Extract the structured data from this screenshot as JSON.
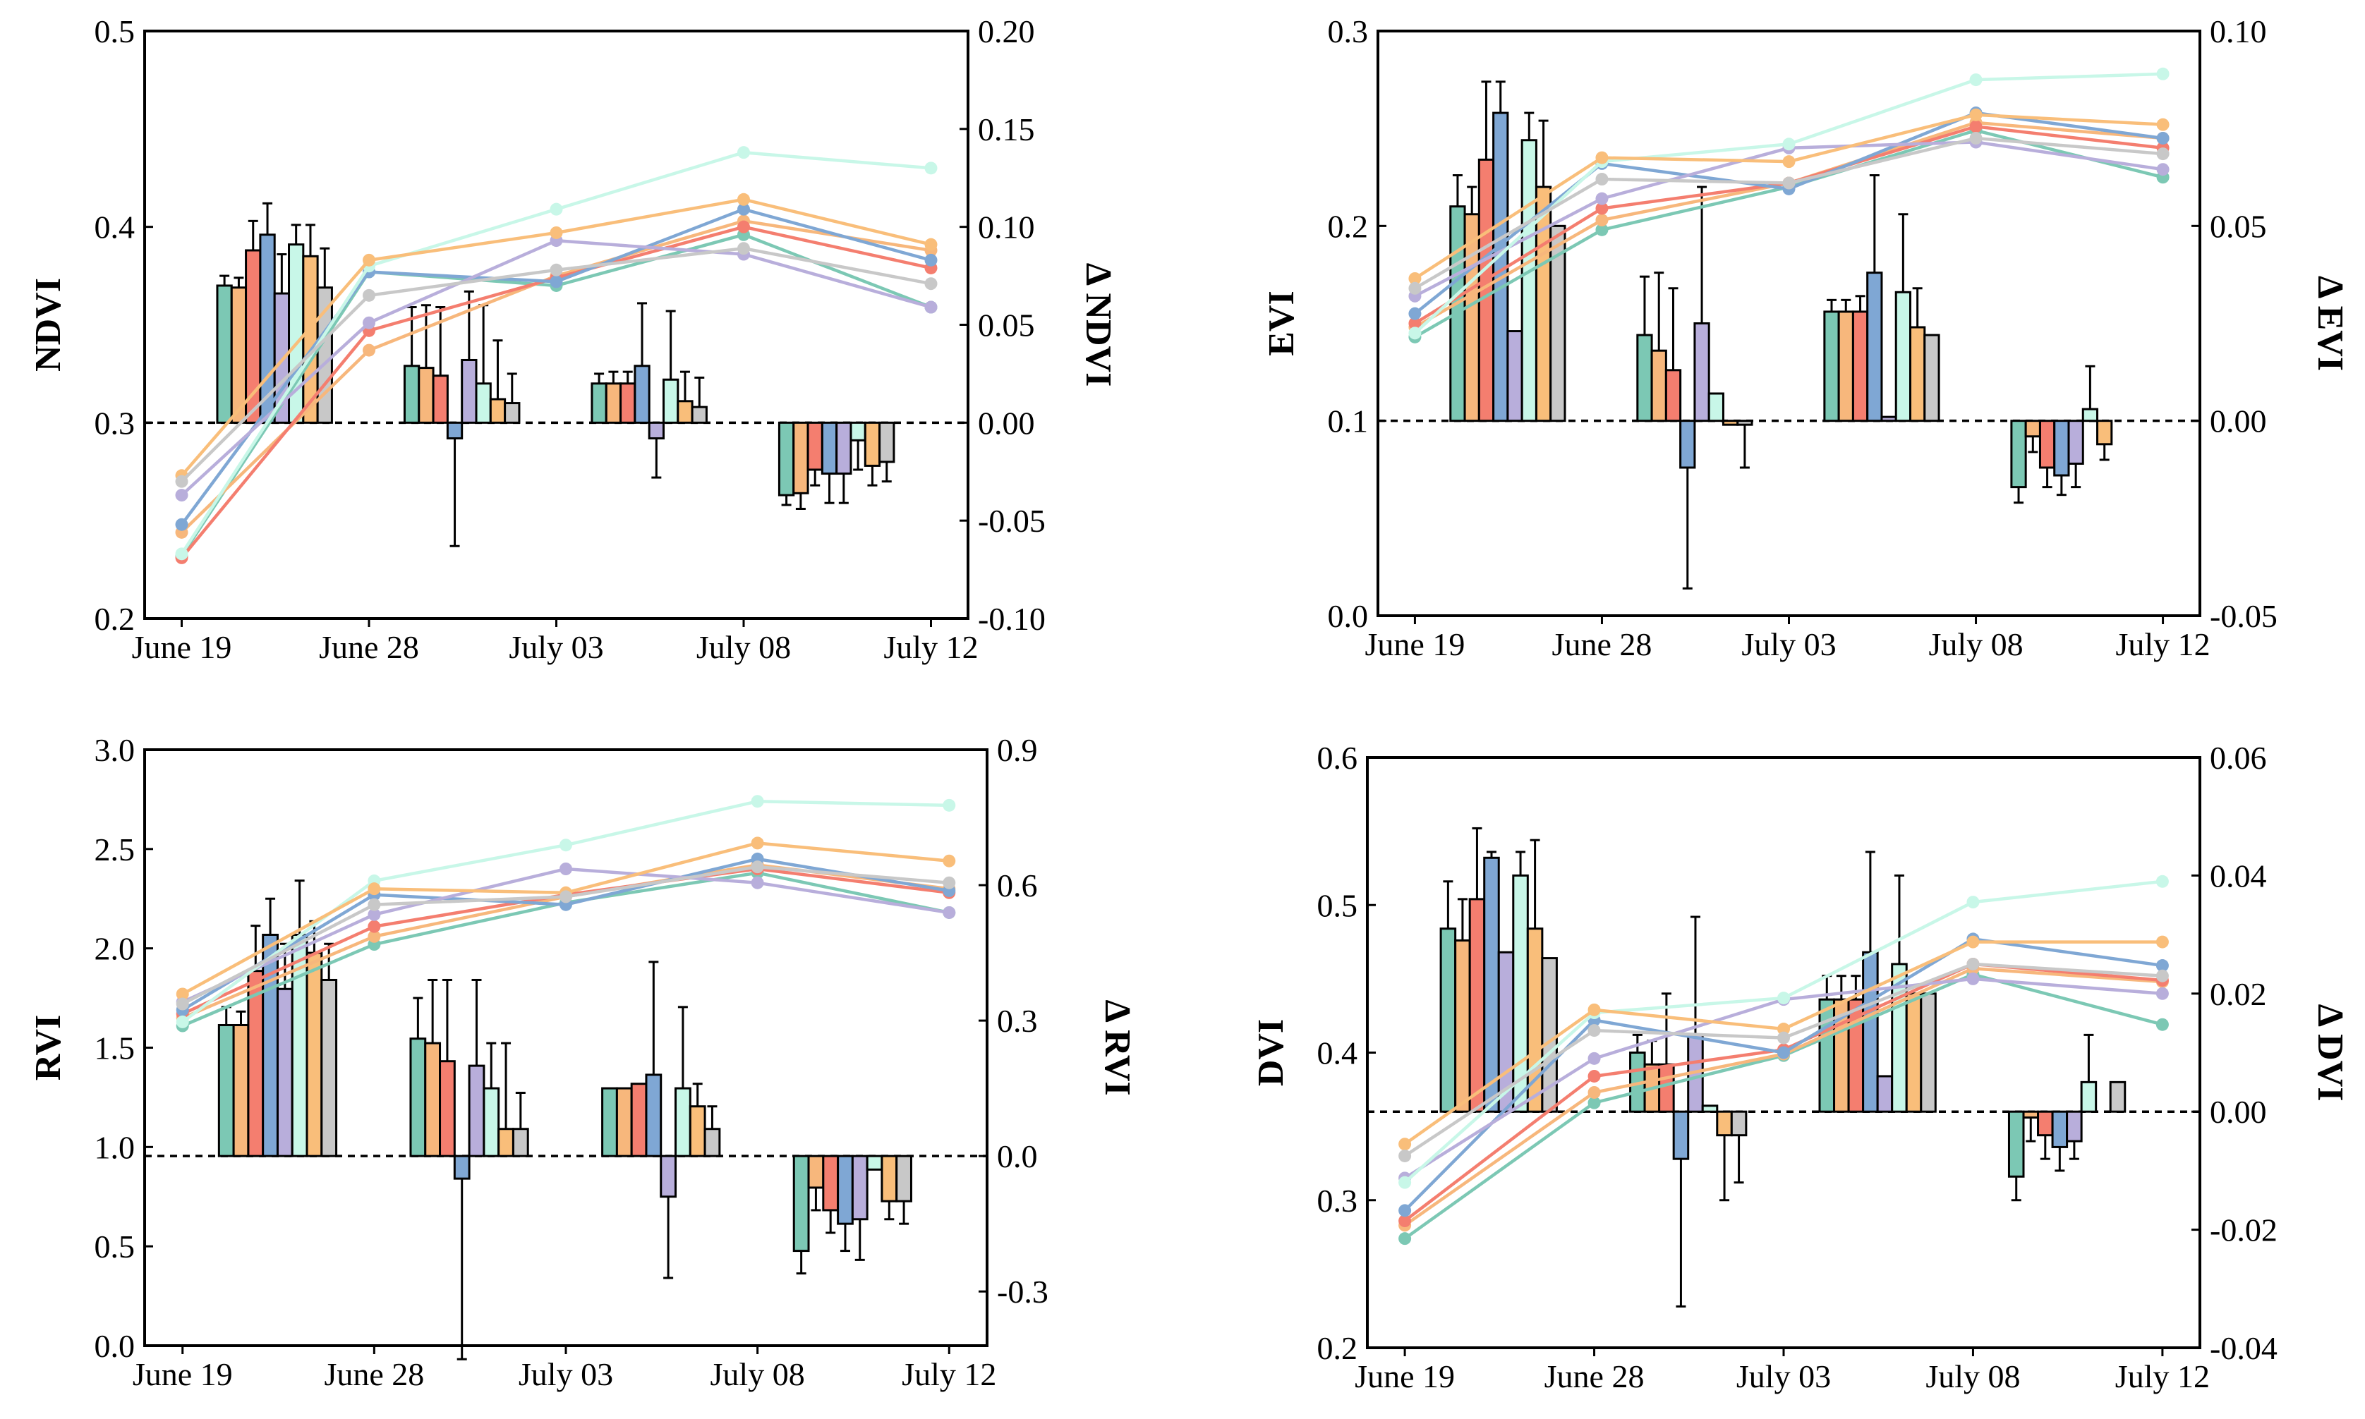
{
  "colors": {
    "series": [
      "#7cc8b4",
      "#f7b77c",
      "#f47e6f",
      "#7fa7d4",
      "#b8aedb",
      "#c8f7e8",
      "#f9be7a",
      "#c8c8c8"
    ],
    "dashed_line": "#000000",
    "errorbar": "#000000"
  },
  "chart_data": [
    {
      "type": "bar+line",
      "panel": "NDVI",
      "ylabel": "NDVI",
      "y2label": "Δ NDVI",
      "categories": [
        "June 19",
        "June 28",
        "July 03",
        "July 08",
        "July 12"
      ],
      "ylim": [
        0.2,
        0.5
      ],
      "yticks": [
        "0.2",
        "0.3",
        "0.4",
        "0.5"
      ],
      "y2lim": [
        -0.1,
        0.2
      ],
      "y2ticks": [
        "-0.10",
        "-0.05",
        "0.00",
        "0.05",
        "0.10",
        "0.15",
        "0.20"
      ],
      "lines": [
        [
          0.232,
          0.377,
          0.37,
          0.396,
          0.359
        ],
        [
          0.244,
          0.337,
          0.375,
          0.403,
          0.388
        ],
        [
          0.231,
          0.347,
          0.374,
          0.4,
          0.379
        ],
        [
          0.248,
          0.377,
          0.372,
          0.409,
          0.383
        ],
        [
          0.263,
          0.351,
          0.393,
          0.386,
          0.359
        ],
        [
          0.233,
          0.38,
          0.409,
          0.438,
          0.43
        ],
        [
          0.273,
          0.383,
          0.397,
          0.414,
          0.391
        ],
        [
          0.27,
          0.365,
          0.378,
          0.389,
          0.371
        ]
      ],
      "bars": [
        {
          "values": [
            0.07,
            0.029,
            0.02,
            -0.037,
            0.0
          ],
          "errors": [
            0.005,
            0.03,
            0.005,
            0.005,
            0.0
          ]
        },
        {
          "values": [
            0.069,
            0.028,
            0.02,
            -0.036,
            0.0
          ],
          "errors": [
            0.005,
            0.032,
            0.006,
            0.008,
            0.0
          ]
        },
        {
          "values": [
            0.088,
            0.024,
            0.02,
            -0.024,
            0.0
          ],
          "errors": [
            0.015,
            0.035,
            0.006,
            0.008,
            0.0
          ]
        },
        {
          "values": [
            0.096,
            -0.008,
            0.029,
            -0.026,
            0.0
          ],
          "errors": [
            0.016,
            0.055,
            0.032,
            0.015,
            0.0
          ]
        },
        {
          "values": [
            0.066,
            0.032,
            -0.008,
            -0.026,
            0.0
          ],
          "errors": [
            0.02,
            0.035,
            0.02,
            0.015,
            0.0
          ]
        },
        {
          "values": [
            0.091,
            0.02,
            0.022,
            -0.009,
            0.0
          ],
          "errors": [
            0.01,
            0.04,
            0.035,
            0.015,
            0.0
          ]
        },
        {
          "values": [
            0.085,
            0.012,
            0.011,
            -0.022,
            0.0
          ],
          "errors": [
            0.016,
            0.03,
            0.015,
            0.01,
            0.0
          ]
        },
        {
          "values": [
            0.069,
            0.01,
            0.008,
            -0.02,
            0.0
          ],
          "errors": [
            0.02,
            0.015,
            0.015,
            0.01,
            0.0
          ]
        }
      ]
    },
    {
      "type": "bar+line",
      "panel": "EVI",
      "ylabel": "EVI",
      "y2label": "Δ EVI",
      "categories": [
        "June 19",
        "June 28",
        "July 03",
        "July 08",
        "July 12"
      ],
      "ylim": [
        0.0,
        0.3
      ],
      "yticks": [
        "0.0",
        "0.1",
        "0.2",
        "0.3"
      ],
      "y2lim": [
        -0.05,
        0.1
      ],
      "y2ticks": [
        "-0.05",
        "0.00",
        "0.05",
        "0.10"
      ],
      "lines": [
        [
          0.143,
          0.198,
          0.22,
          0.249,
          0.225
        ],
        [
          0.148,
          0.203,
          0.222,
          0.253,
          0.245
        ],
        [
          0.15,
          0.209,
          0.222,
          0.251,
          0.24
        ],
        [
          0.155,
          0.232,
          0.219,
          0.258,
          0.245
        ],
        [
          0.164,
          0.214,
          0.24,
          0.243,
          0.229
        ],
        [
          0.145,
          0.233,
          0.242,
          0.275,
          0.278
        ],
        [
          0.173,
          0.235,
          0.233,
          0.257,
          0.252
        ],
        [
          0.168,
          0.224,
          0.222,
          0.245,
          0.237
        ]
      ],
      "bars": [
        {
          "values": [
            0.055,
            0.022,
            0.028,
            -0.017,
            0.0
          ],
          "errors": [
            0.008,
            0.015,
            0.003,
            0.004,
            0.0
          ]
        },
        {
          "values": [
            0.053,
            0.018,
            0.028,
            -0.004,
            0.0
          ],
          "errors": [
            0.007,
            0.02,
            0.003,
            0.004,
            0.0
          ]
        },
        {
          "values": [
            0.067,
            0.013,
            0.028,
            -0.012,
            0.0
          ],
          "errors": [
            0.02,
            0.021,
            0.004,
            0.005,
            0.0
          ]
        },
        {
          "values": [
            0.079,
            -0.012,
            0.038,
            -0.014,
            0.0
          ],
          "errors": [
            0.008,
            0.031,
            0.025,
            0.005,
            0.0
          ]
        },
        {
          "values": [
            0.023,
            0.025,
            0.001,
            -0.011,
            0.0
          ],
          "errors": [
            0.0,
            0.035,
            0.0,
            0.006,
            0.0
          ]
        },
        {
          "values": [
            0.072,
            0.007,
            0.033,
            0.003,
            0.0
          ],
          "errors": [
            0.007,
            0.0,
            0.02,
            0.011,
            0.0
          ]
        },
        {
          "values": [
            0.06,
            -0.001,
            0.024,
            -0.006,
            0.0
          ],
          "errors": [
            0.017,
            0.0,
            0.01,
            0.004,
            0.0
          ]
        },
        {
          "values": [
            0.05,
            -0.001,
            0.022,
            0.0,
            0.0
          ],
          "errors": [
            0.0,
            0.011,
            0.0,
            0.007,
            0.0
          ]
        }
      ]
    },
    {
      "type": "bar+line",
      "panel": "RVI",
      "ylabel": "RVI",
      "y2label": "Δ RVI",
      "categories": [
        "June 19",
        "June 28",
        "July 03",
        "July 08",
        "July 12"
      ],
      "ylim": [
        0.0,
        3.0
      ],
      "yticks": [
        "0.0",
        "0.5",
        "1.0",
        "1.5",
        "2.0",
        "2.5",
        "3.0"
      ],
      "y2lim": [
        -0.42,
        0.9
      ],
      "y2ticks": [
        "-0.3",
        "0.0",
        "0.3",
        "0.6",
        "0.9"
      ],
      "lines": [
        [
          1.61,
          2.02,
          2.23,
          2.38,
          2.18
        ],
        [
          1.65,
          2.06,
          2.26,
          2.42,
          2.3
        ],
        [
          1.67,
          2.11,
          2.27,
          2.4,
          2.28
        ],
        [
          1.69,
          2.27,
          2.22,
          2.45,
          2.29
        ],
        [
          1.73,
          2.17,
          2.4,
          2.33,
          2.18
        ],
        [
          1.63,
          2.34,
          2.52,
          2.74,
          2.72
        ],
        [
          1.77,
          2.3,
          2.28,
          2.53,
          2.44
        ],
        [
          1.72,
          2.22,
          2.26,
          2.41,
          2.33
        ]
      ],
      "bars": [
        {
          "values": [
            0.29,
            0.26,
            0.15,
            -0.21,
            0.0
          ],
          "errors": [
            0.04,
            0.09,
            0.0,
            0.05,
            0.0
          ]
        },
        {
          "values": [
            0.29,
            0.25,
            0.15,
            -0.07,
            0.0
          ],
          "errors": [
            0.03,
            0.14,
            0.0,
            0.05,
            0.0
          ]
        },
        {
          "values": [
            0.41,
            0.21,
            0.16,
            -0.12,
            0.0
          ],
          "errors": [
            0.1,
            0.18,
            0.0,
            0.05,
            0.0
          ]
        },
        {
          "values": [
            0.49,
            -0.05,
            0.18,
            -0.15,
            0.0
          ],
          "errors": [
            0.08,
            0.4,
            0.25,
            0.06,
            0.0
          ]
        },
        {
          "values": [
            0.37,
            0.2,
            -0.09,
            -0.14,
            0.0
          ],
          "errors": [
            0.1,
            0.19,
            0.18,
            0.09,
            0.0
          ]
        },
        {
          "values": [
            0.49,
            0.15,
            0.15,
            -0.03,
            0.0
          ],
          "errors": [
            0.12,
            0.1,
            0.18,
            0.0,
            0.0
          ]
        },
        {
          "values": [
            0.45,
            0.06,
            0.11,
            -0.1,
            0.0
          ],
          "errors": [
            0.07,
            0.19,
            0.05,
            0.04,
            0.0
          ]
        },
        {
          "values": [
            0.39,
            0.06,
            0.06,
            -0.1,
            0.0
          ],
          "errors": [
            0.08,
            0.08,
            0.05,
            0.05,
            0.0
          ]
        }
      ]
    },
    {
      "type": "bar+line",
      "panel": "DVI",
      "ylabel": "DVI",
      "y2label": "Δ DVI",
      "categories": [
        "June 19",
        "June 28",
        "July 03",
        "July 08",
        "July 12"
      ],
      "ylim": [
        0.2,
        0.6
      ],
      "yticks": [
        "0.2",
        "0.3",
        "0.4",
        "0.5",
        "0.6"
      ],
      "y2lim": [
        -0.04,
        0.06
      ],
      "y2ticks": [
        "-0.04",
        "-0.02",
        "0.00",
        "0.02",
        "0.04",
        "0.06"
      ],
      "lines": [
        [
          0.274,
          0.366,
          0.398,
          0.453,
          0.419
        ],
        [
          0.283,
          0.373,
          0.399,
          0.457,
          0.448
        ],
        [
          0.286,
          0.384,
          0.402,
          0.46,
          0.449
        ],
        [
          0.293,
          0.422,
          0.4,
          0.477,
          0.459
        ],
        [
          0.315,
          0.396,
          0.436,
          0.45,
          0.44
        ],
        [
          0.312,
          0.427,
          0.437,
          0.502,
          0.516
        ],
        [
          0.338,
          0.429,
          0.416,
          0.475,
          0.475
        ],
        [
          0.33,
          0.415,
          0.41,
          0.46,
          0.452
        ]
      ],
      "bars": [
        {
          "values": [
            0.031,
            0.01,
            0.019,
            -0.011,
            0.0
          ],
          "errors": [
            0.008,
            0.003,
            0.004,
            0.004,
            0.0
          ]
        },
        {
          "values": [
            0.029,
            0.008,
            0.019,
            -0.001,
            0.0
          ],
          "errors": [
            0.007,
            0.004,
            0.004,
            0.004,
            0.0
          ]
        },
        {
          "values": [
            0.036,
            0.008,
            0.019,
            -0.004,
            0.0
          ],
          "errors": [
            0.012,
            0.012,
            0.004,
            0.004,
            0.0
          ]
        },
        {
          "values": [
            0.043,
            -0.008,
            0.027,
            -0.006,
            0.0
          ],
          "errors": [
            0.001,
            0.025,
            0.017,
            0.004,
            0.0
          ]
        },
        {
          "values": [
            0.027,
            0.013,
            0.006,
            -0.005,
            0.0
          ],
          "errors": [
            0.0,
            0.02,
            0.0,
            0.003,
            0.0
          ]
        },
        {
          "values": [
            0.04,
            0.001,
            0.025,
            0.005,
            0.0
          ],
          "errors": [
            0.004,
            0.0,
            0.015,
            0.008,
            0.0
          ]
        },
        {
          "values": [
            0.031,
            -0.004,
            0.02,
            0.0,
            0.0
          ],
          "errors": [
            0.015,
            0.011,
            0.0,
            0.0,
            0.0
          ]
        },
        {
          "values": [
            0.026,
            -0.004,
            0.02,
            0.005,
            0.0
          ],
          "errors": [
            0.0,
            0.008,
            0.0,
            0.0,
            0.0
          ]
        }
      ]
    }
  ]
}
